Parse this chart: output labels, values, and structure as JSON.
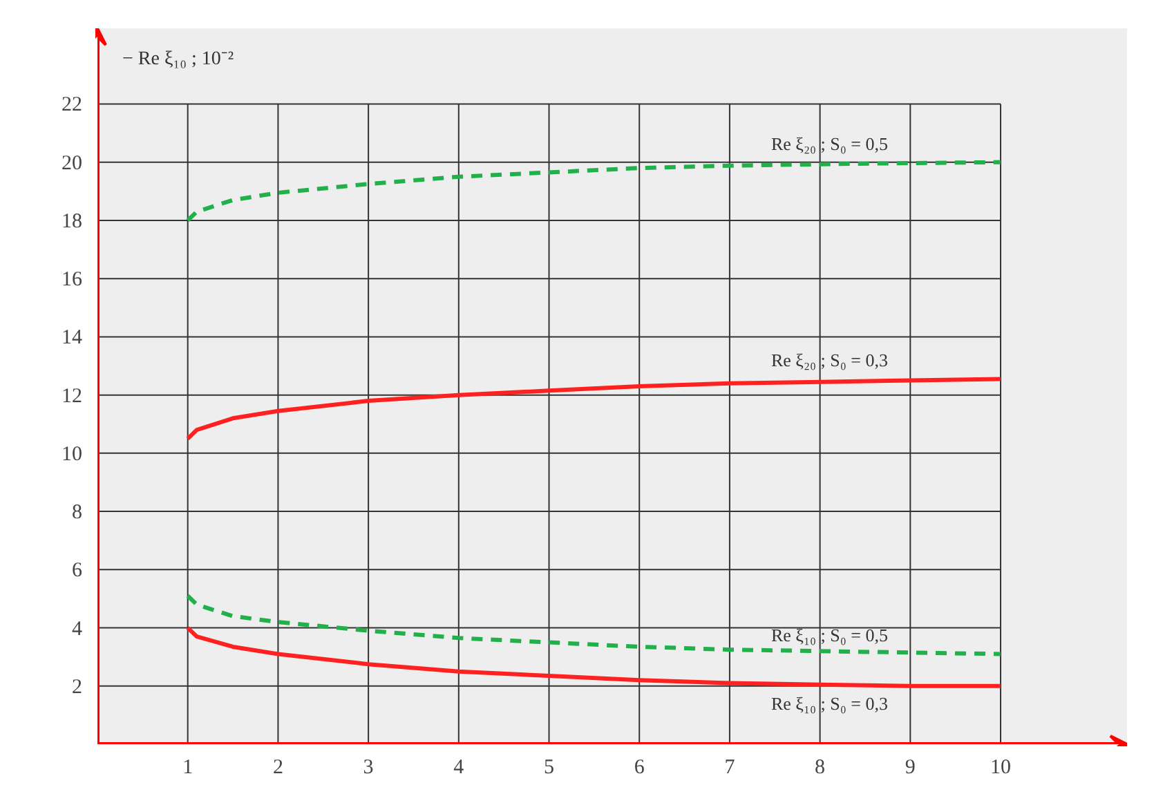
{
  "chart_data": {
    "type": "line",
    "ylabel": "− Re ξ₁₀ ; 10⁻²",
    "x": [
      1,
      1.1,
      1.5,
      2,
      3,
      4,
      5,
      6,
      7,
      8,
      9,
      10
    ],
    "series": [
      {
        "name": "Re ξ₂₀ ; S₀ = 0,5",
        "color": "#22b04a",
        "line_style": "dashed",
        "values": [
          18.0,
          18.3,
          18.7,
          18.95,
          19.25,
          19.5,
          19.65,
          19.8,
          19.88,
          19.93,
          19.97,
          20.0
        ]
      },
      {
        "name": "Re ξ₂₀ ; S₀ = 0,3",
        "color": "#ff2020",
        "line_style": "solid",
        "values": [
          10.5,
          10.8,
          11.2,
          11.45,
          11.8,
          12.0,
          12.15,
          12.3,
          12.4,
          12.45,
          12.5,
          12.55
        ]
      },
      {
        "name": "Re ξ₁₀ ; S₀ = 0,5",
        "color": "#22b04a",
        "line_style": "dashed",
        "values": [
          5.1,
          4.8,
          4.4,
          4.2,
          3.9,
          3.65,
          3.5,
          3.35,
          3.25,
          3.2,
          3.15,
          3.1
        ]
      },
      {
        "name": "Re ξ₁₀ ; S₀ = 0,3",
        "color": "#ff2020",
        "line_style": "solid",
        "values": [
          4.0,
          3.7,
          3.35,
          3.1,
          2.75,
          2.5,
          2.35,
          2.2,
          2.1,
          2.05,
          2.0,
          2.0
        ]
      }
    ],
    "xlim": [
      0,
      11.4
    ],
    "ylim": [
      0,
      24.6
    ],
    "xticks": [
      1,
      2,
      3,
      4,
      5,
      6,
      7,
      8,
      9,
      10
    ],
    "yticks": [
      2,
      4,
      6,
      8,
      10,
      12,
      14,
      16,
      18,
      20,
      22
    ],
    "grid": true,
    "marker": "none"
  }
}
